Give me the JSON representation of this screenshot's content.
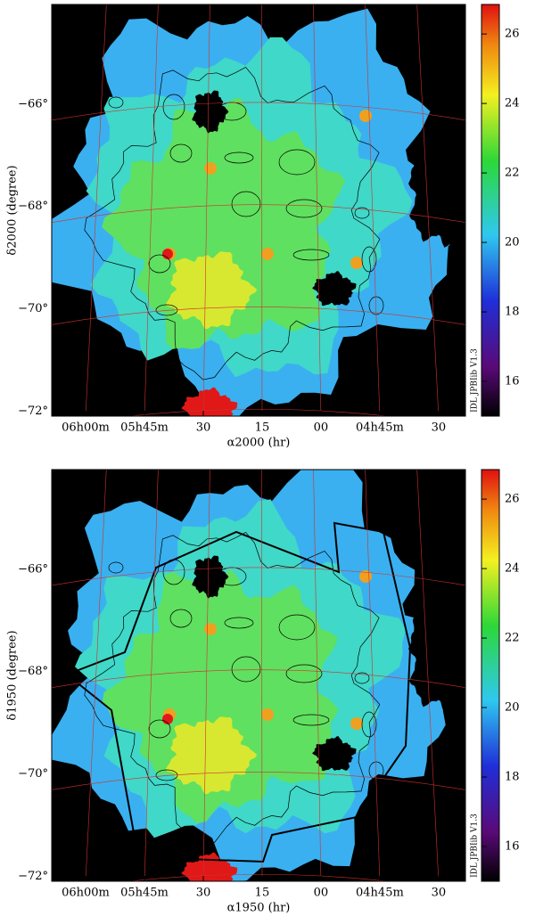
{
  "chart_data": [
    {
      "type": "heatmap",
      "xlabel": "α2000 (hr)",
      "ylabel": "δ2000 (degree)",
      "xlim": [
        6.144,
        4.386
      ],
      "xticks": [
        {
          "value": 6.0,
          "label": "06h00m"
        },
        {
          "value": 5.75,
          "label": "05h45m"
        },
        {
          "value": 5.5,
          "label": "30"
        },
        {
          "value": 5.25,
          "label": "15"
        },
        {
          "value": 5.0,
          "label": "00"
        },
        {
          "value": 4.75,
          "label": "04h45m"
        },
        {
          "value": 4.5,
          "label": "30"
        }
      ],
      "ylim": [
        -72.1,
        -64.05
      ],
      "yticks": [
        {
          "value": -66,
          "label": "−66°"
        },
        {
          "value": -68,
          "label": "−68°"
        },
        {
          "value": -70,
          "label": "−70°"
        },
        {
          "value": -72,
          "label": "−72°"
        }
      ],
      "colorbar": {
        "lim": [
          15,
          26.85
        ],
        "ticks": [
          16,
          18,
          20,
          22,
          24,
          26
        ]
      },
      "note": "IDL JPBIib V1.3"
    },
    {
      "type": "heatmap",
      "xlabel": "α1950 (hr)",
      "ylabel": "δ1950 (degree)",
      "xlim": [
        6.144,
        4.386
      ],
      "xticks": [
        {
          "value": 6.0,
          "label": "06h00m"
        },
        {
          "value": 5.75,
          "label": "05h45m"
        },
        {
          "value": 5.5,
          "label": "30"
        },
        {
          "value": 5.25,
          "label": "15"
        },
        {
          "value": 5.0,
          "label": "00"
        },
        {
          "value": 4.75,
          "label": "04h45m"
        },
        {
          "value": 4.5,
          "label": "30"
        }
      ],
      "ylim": [
        -72.1,
        -64.05
      ],
      "yticks": [
        {
          "value": -66,
          "label": "−66°"
        },
        {
          "value": -68,
          "label": "−68°"
        },
        {
          "value": -70,
          "label": "−70°"
        },
        {
          "value": -72,
          "label": "−72°"
        }
      ],
      "colorbar": {
        "lim": [
          15,
          26.85
        ],
        "ticks": [
          16,
          18,
          20,
          22,
          24,
          26
        ]
      },
      "note": "IDL JPBIib V1.3"
    }
  ]
}
